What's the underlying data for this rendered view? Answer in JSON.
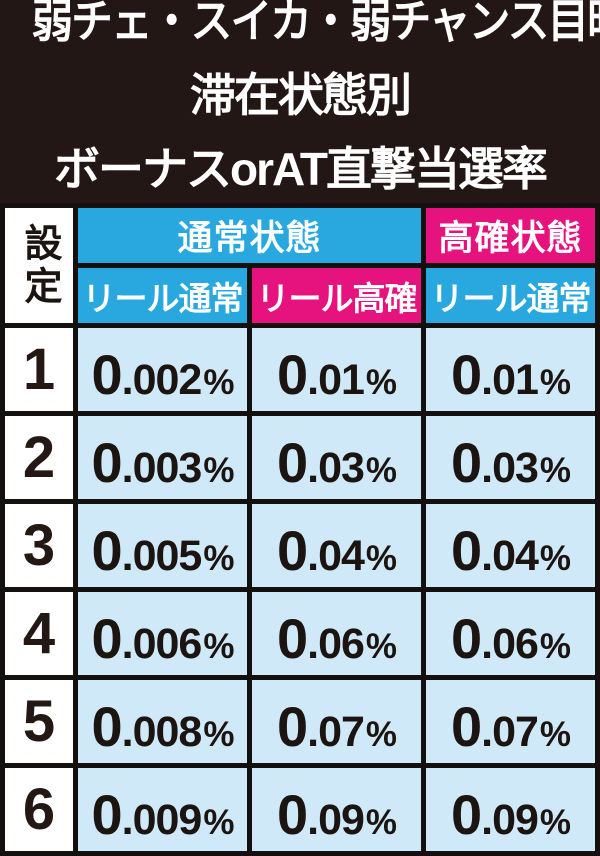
{
  "title": {
    "lines": [
      "弱チェ・スイカ・弱チャンス目時",
      "滞在状態別",
      "ボーナスorAT直撃当選率"
    ]
  },
  "colors": {
    "title_bg": "#221714",
    "blue": "#29a8e0",
    "pink": "#e6137f",
    "value_cell_bg": "#cfe9f8",
    "border": "#141010",
    "text_light": "#ffffff",
    "text_dark": "#1c1410"
  },
  "table": {
    "corner_header": "設定",
    "group_headers": [
      {
        "label": "通常状態",
        "color": "blue"
      },
      {
        "label": "高確状態",
        "color": "pink"
      }
    ],
    "sub_headers": [
      {
        "label": "リール通常",
        "color": "blue"
      },
      {
        "label": "リール高確",
        "color": "pink"
      },
      {
        "label": "リール通常",
        "color": "blue"
      }
    ],
    "rows": [
      {
        "setting": "1",
        "values": [
          "0.002%",
          "0.01%",
          "0.01%"
        ]
      },
      {
        "setting": "2",
        "values": [
          "0.003%",
          "0.03%",
          "0.03%"
        ]
      },
      {
        "setting": "3",
        "values": [
          "0.005%",
          "0.04%",
          "0.04%"
        ]
      },
      {
        "setting": "4",
        "values": [
          "0.006%",
          "0.06%",
          "0.06%"
        ]
      },
      {
        "setting": "5",
        "values": [
          "0.008%",
          "0.07%",
          "0.07%"
        ]
      },
      {
        "setting": "6",
        "values": [
          "0.009%",
          "0.09%",
          "0.09%"
        ]
      }
    ]
  },
  "chart_data": {
    "type": "table",
    "title": "弱チェ・スイカ・弱チャンス目時 滞在状態別 ボーナスorAT直撃当選率",
    "columns": [
      "設定",
      "通常状態 リール通常",
      "通常状態 リール高確",
      "高確状態 リール通常"
    ],
    "rows": [
      [
        "1",
        "0.002%",
        "0.01%",
        "0.01%"
      ],
      [
        "2",
        "0.003%",
        "0.03%",
        "0.03%"
      ],
      [
        "3",
        "0.005%",
        "0.04%",
        "0.04%"
      ],
      [
        "4",
        "0.006%",
        "0.06%",
        "0.06%"
      ],
      [
        "5",
        "0.008%",
        "0.07%",
        "0.07%"
      ],
      [
        "6",
        "0.009%",
        "0.09%",
        "0.09%"
      ]
    ]
  }
}
